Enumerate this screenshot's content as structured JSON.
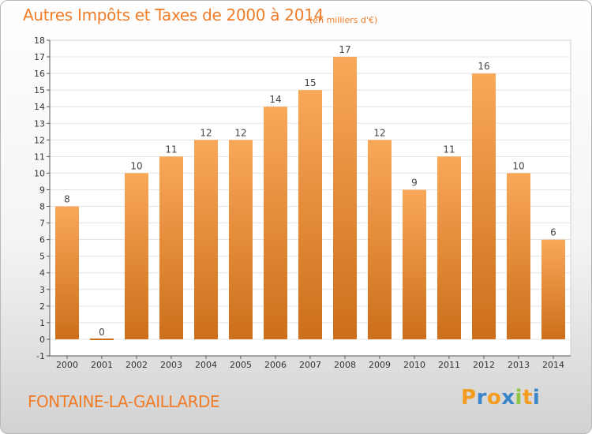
{
  "header": {
    "title": "Autres Impôts et Taxes de 2000 à 2014",
    "subtitle": "(en milliers d'€)"
  },
  "footer": {
    "city": "FONTAINE-LA-GAILLARDE",
    "logo": {
      "letters": [
        "P",
        "r",
        "o",
        "x",
        "i",
        "t",
        "i"
      ],
      "colors": [
        "#f39c1f",
        "#3a86c8",
        "#f39c1f",
        "#3a86c8",
        "#8cc63f",
        "#f39c1f",
        "#3a86c8"
      ]
    }
  },
  "colors": {
    "accent": "#f07c28",
    "bar_top": "#f9a859",
    "bar_bottom": "#cc6f1a",
    "grid": "#e3e3e3"
  },
  "chart_data": {
    "type": "bar",
    "categories": [
      "2000",
      "2001",
      "2002",
      "2003",
      "2004",
      "2005",
      "2006",
      "2007",
      "2008",
      "2009",
      "2010",
      "2011",
      "2012",
      "2013",
      "2014"
    ],
    "values": [
      8,
      0,
      10,
      11,
      12,
      12,
      14,
      15,
      17,
      12,
      9,
      11,
      16,
      10,
      6
    ],
    "data_labels": [
      "8",
      "0",
      "10",
      "11",
      "12",
      "12",
      "14",
      "15",
      "17",
      "12",
      "9",
      "11",
      "16",
      "10",
      "6"
    ],
    "y_ticks": [
      -1,
      0,
      1,
      2,
      3,
      4,
      5,
      6,
      7,
      8,
      9,
      10,
      11,
      12,
      13,
      14,
      15,
      16,
      17,
      18
    ],
    "ylim": [
      -1,
      18
    ],
    "grid": true,
    "legend": "none"
  }
}
